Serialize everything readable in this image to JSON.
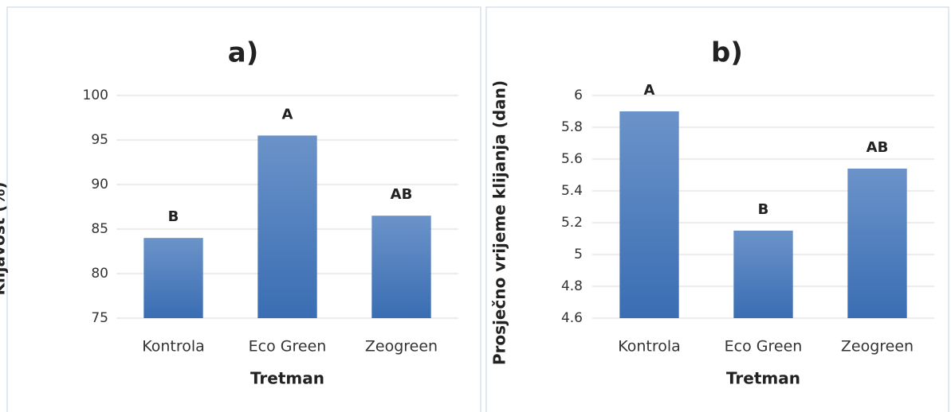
{
  "chart_data": [
    {
      "type": "bar",
      "title": "a)",
      "x_label": "Tretman",
      "y_label": "Klijavost (%)",
      "categories": [
        "Kontrola",
        "Eco Green",
        "Zeogreen"
      ],
      "values": [
        84,
        95.5,
        86.5
      ],
      "value_labels": [
        "B",
        "A",
        "AB"
      ],
      "color": "#4a7ebb",
      "ylim": [
        75,
        100
      ],
      "yticks": [
        75,
        80,
        85,
        90,
        95,
        100
      ],
      "grid": true
    },
    {
      "type": "bar",
      "title": "b)",
      "x_label": "Tretman",
      "y_label": "Prosječno vrijeme klijanja (dan)",
      "categories": [
        "Kontrola",
        "Eco Green",
        "Zeogreen"
      ],
      "values": [
        5.9,
        5.15,
        5.54
      ],
      "value_labels": [
        "A",
        "B",
        "AB"
      ],
      "color": "#4a7ebb",
      "ylim": [
        4.6,
        6
      ],
      "yticks": [
        4.6,
        4.8,
        5,
        5.2,
        5.4,
        5.6,
        5.8,
        6
      ],
      "grid": true
    }
  ]
}
